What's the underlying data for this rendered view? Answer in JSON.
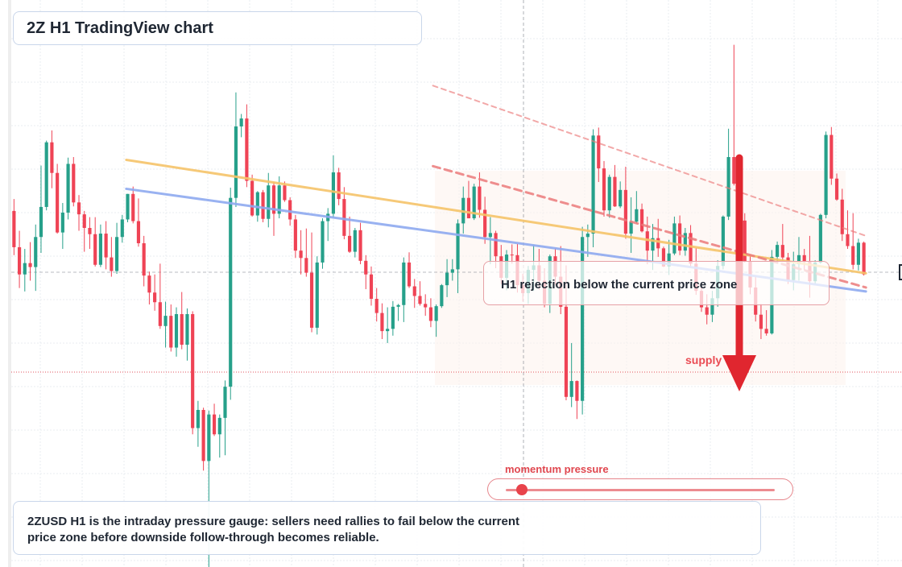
{
  "title": "2Z H1 TradingView chart",
  "annotation": "H1 rejection below the current price zone",
  "supply_label": "supply",
  "momentum": {
    "label": "momentum pressure",
    "level": 0.06
  },
  "summary": {
    "line1": "2ZUSD H1 is the intraday pressure gauge: sellers need rallies to fail below the current",
    "line2": "price zone before downside follow-through becomes reliable."
  },
  "colors": {
    "up": "#26a08a",
    "down": "#ef4355",
    "orange_line": "#f6c46a",
    "blue_line": "#8faaf0",
    "dashed_red": "#ec7b7b",
    "arrow": "#e0262f",
    "grid": "#e8ecf2"
  },
  "chart_data": {
    "type": "candlestick",
    "title": "2Z H1 TradingView chart",
    "ylim": [
      0,
      100
    ],
    "current_price": 57,
    "candles_ohlc": [
      [
        62.8,
        64.9,
        55.0,
        56.4
      ],
      [
        56.4,
        59.3,
        49.2,
        51.6
      ],
      [
        51.6,
        56.1,
        48.6,
        53.6
      ],
      [
        53.6,
        57.3,
        50.5,
        52.9
      ],
      [
        52.9,
        60.4,
        48.7,
        58.2
      ],
      [
        58.2,
        70.8,
        55.4,
        63.5
      ],
      [
        63.5,
        75.2,
        62.9,
        74.9
      ],
      [
        74.9,
        77.0,
        66.8,
        69.5
      ],
      [
        69.5,
        71.1,
        58.8,
        59.0
      ],
      [
        59.0,
        64.2,
        56.1,
        62.5
      ],
      [
        62.5,
        72.2,
        61.3,
        71.1
      ],
      [
        71.1,
        72.3,
        63.6,
        64.3
      ],
      [
        64.3,
        65.6,
        59.3,
        62.2
      ],
      [
        62.2,
        62.8,
        55.6,
        59.8
      ],
      [
        59.8,
        61.7,
        56.1,
        58.7
      ],
      [
        58.7,
        61.7,
        53.0,
        53.3
      ],
      [
        53.3,
        60.4,
        52.9,
        58.8
      ],
      [
        58.8,
        61.0,
        52.5,
        54.6
      ],
      [
        54.6,
        58.2,
        51.2,
        52.2
      ],
      [
        52.2,
        60.7,
        51.7,
        58.2
      ],
      [
        58.2,
        62.1,
        57.2,
        61.3
      ],
      [
        61.3,
        65.8,
        60.8,
        65.8
      ],
      [
        65.8,
        67.1,
        60.6,
        61.0
      ],
      [
        61.0,
        65.0,
        56.5,
        57.1
      ],
      [
        57.1,
        58.4,
        49.5,
        51.4
      ],
      [
        51.4,
        52.1,
        46.3,
        48.4
      ],
      [
        48.4,
        51.6,
        45.2,
        46.7
      ],
      [
        46.7,
        53.5,
        42.0,
        42.5
      ],
      [
        42.5,
        46.8,
        38.7,
        44.3
      ],
      [
        44.3,
        46.3,
        38.0,
        38.7
      ],
      [
        38.7,
        45.8,
        37.1,
        44.6
      ],
      [
        44.6,
        48.5,
        38.4,
        39.2
      ],
      [
        39.2,
        45.6,
        36.4,
        44.6
      ],
      [
        44.6,
        45.1,
        23.4,
        24.5
      ],
      [
        24.5,
        29.3,
        21.2,
        27.7
      ],
      [
        27.7,
        28.1,
        17.0,
        18.7
      ],
      [
        18.7,
        27.6,
        0.0,
        26.9
      ],
      [
        26.9,
        28.8,
        23.1,
        23.4
      ],
      [
        23.4,
        26.9,
        19.3,
        26.3
      ],
      [
        26.3,
        32.9,
        19.7,
        31.8
      ],
      [
        31.8,
        66.9,
        29.5,
        65.1
      ],
      [
        65.1,
        83.7,
        63.5,
        77.7
      ],
      [
        77.7,
        79.9,
        75.8,
        79.1
      ],
      [
        79.1,
        81.6,
        67.0,
        68.1
      ],
      [
        68.1,
        69.2,
        61.8,
        62.0
      ],
      [
        62.0,
        66.3,
        60.9,
        66.1
      ],
      [
        66.1,
        66.5,
        60.8,
        61.4
      ],
      [
        61.4,
        69.5,
        59.9,
        67.3
      ],
      [
        67.3,
        67.9,
        58.4,
        62.3
      ],
      [
        62.3,
        68.9,
        61.5,
        67.3
      ],
      [
        67.3,
        68.0,
        64.4,
        64.7
      ],
      [
        64.7,
        65.2,
        60.2,
        61.3
      ],
      [
        61.3,
        62.1,
        54.5,
        55.8
      ],
      [
        55.8,
        59.4,
        51.6,
        54.5
      ],
      [
        54.5,
        59.7,
        51.2,
        51.9
      ],
      [
        51.9,
        59.0,
        41.4,
        42.2
      ],
      [
        42.2,
        54.8,
        41.0,
        53.7
      ],
      [
        53.7,
        61.5,
        52.6,
        61.0
      ],
      [
        61.0,
        63.3,
        57.5,
        62.3
      ],
      [
        62.3,
        72.6,
        61.6,
        69.6
      ],
      [
        69.6,
        70.4,
        63.8,
        64.9
      ],
      [
        64.9,
        67.0,
        57.8,
        58.4
      ],
      [
        58.4,
        61.8,
        55.4,
        55.6
      ],
      [
        55.6,
        59.8,
        54.6,
        59.4
      ],
      [
        59.4,
        60.7,
        53.4,
        54.0
      ],
      [
        54.0,
        55.0,
        49.0,
        51.6
      ],
      [
        51.6,
        53.0,
        46.1,
        47.3
      ],
      [
        47.3,
        49.2,
        43.3,
        44.8
      ],
      [
        44.8,
        46.5,
        40.2,
        41.6
      ],
      [
        41.6,
        45.8,
        39.5,
        42.0
      ],
      [
        42.0,
        46.9,
        40.8,
        45.9
      ],
      [
        45.9,
        46.4,
        43.4,
        46.2
      ],
      [
        46.2,
        54.6,
        43.2,
        53.7
      ],
      [
        53.7,
        55.5,
        49.2,
        49.5
      ],
      [
        49.5,
        50.8,
        45.7,
        47.8
      ],
      [
        47.8,
        50.4,
        46.1,
        46.4
      ],
      [
        46.4,
        48.1,
        44.3,
        45.8
      ],
      [
        45.8,
        47.4,
        42.3,
        43.4
      ],
      [
        43.4,
        46.3,
        40.6,
        46.0
      ],
      [
        46.0,
        49.9,
        45.7,
        49.7
      ],
      [
        49.7,
        54.3,
        47.6,
        51.9
      ],
      [
        51.9,
        54.3,
        50.5,
        52.5
      ],
      [
        52.5,
        61.3,
        48.3,
        60.6
      ],
      [
        60.6,
        67.1,
        58.8,
        65.1
      ],
      [
        65.1,
        68.1,
        61.5,
        61.5
      ],
      [
        61.5,
        67.6,
        61.2,
        67.1
      ],
      [
        67.1,
        69.6,
        61.6,
        63.0
      ],
      [
        63.0,
        65.3,
        57.0,
        58.2
      ],
      [
        58.2,
        61.7,
        53.4,
        58.9
      ],
      [
        58.9,
        59.3,
        52.7,
        54.8
      ],
      [
        54.8,
        56.8,
        49.9,
        51.0
      ],
      [
        51.0,
        55.9,
        48.8,
        55.1
      ],
      [
        55.1,
        56.9,
        53.5,
        55.0
      ],
      [
        55.0,
        57.0,
        48.4,
        49.7
      ],
      [
        49.7,
        51.7,
        46.8,
        48.3
      ],
      [
        48.3,
        53.1,
        46.4,
        52.4
      ],
      [
        52.4,
        56.8,
        48.7,
        53.2
      ],
      [
        53.2,
        56.1,
        48.9,
        50.5
      ],
      [
        50.5,
        52.7,
        45.8,
        46.4
      ],
      [
        46.4,
        55.1,
        44.8,
        54.8
      ],
      [
        54.8,
        56.2,
        49.8,
        51.2
      ],
      [
        51.2,
        56.6,
        44.6,
        45.9
      ],
      [
        45.9,
        53.2,
        29.4,
        30.0
      ],
      [
        30.0,
        39.5,
        28.2,
        32.8
      ],
      [
        32.8,
        32.9,
        26.1,
        29.3
      ],
      [
        29.3,
        60.0,
        26.9,
        58.2
      ],
      [
        58.2,
        60.4,
        54.7,
        58.8
      ],
      [
        58.8,
        77.2,
        56.4,
        76.1
      ],
      [
        76.1,
        77.5,
        67.9,
        70.3
      ],
      [
        70.3,
        71.6,
        61.8,
        62.9
      ],
      [
        62.9,
        69.2,
        61.6,
        68.8
      ],
      [
        68.8,
        70.9,
        63.5,
        63.6
      ],
      [
        63.6,
        68.0,
        63.3,
        66.5
      ],
      [
        66.5,
        70.6,
        57.9,
        58.8
      ],
      [
        58.8,
        65.2,
        55.4,
        60.9
      ],
      [
        60.9,
        66.3,
        60.6,
        63.1
      ],
      [
        63.1,
        64.1,
        59.0,
        59.2
      ],
      [
        59.2,
        61.8,
        53.4,
        55.8
      ],
      [
        55.8,
        60.5,
        52.4,
        58.0
      ],
      [
        58.0,
        61.4,
        54.7,
        56.2
      ],
      [
        56.2,
        56.5,
        52.9,
        53.0
      ],
      [
        53.0,
        57.7,
        51.5,
        55.3
      ],
      [
        55.3,
        61.8,
        55.0,
        60.6
      ],
      [
        60.6,
        62.0,
        55.0,
        55.8
      ],
      [
        55.8,
        59.8,
        54.9,
        58.9
      ],
      [
        58.9,
        60.3,
        52.8,
        53.5
      ],
      [
        53.5,
        56.2,
        48.0,
        48.7
      ],
      [
        48.7,
        50.1,
        45.0,
        45.8
      ],
      [
        45.8,
        48.1,
        42.8,
        44.5
      ],
      [
        44.5,
        48.7,
        43.2,
        47.4
      ],
      [
        47.4,
        54.1,
        45.9,
        53.1
      ],
      [
        53.1,
        62.0,
        52.5,
        61.8
      ],
      [
        61.8,
        77.3,
        61.2,
        72.3
      ],
      [
        72.3,
        92.1,
        67.3,
        67.6
      ],
      [
        67.6,
        69.3,
        60.1,
        61.1
      ],
      [
        61.1,
        62.4,
        53.7,
        53.9
      ],
      [
        53.9,
        54.9,
        48.1,
        49.3
      ],
      [
        49.3,
        51.4,
        43.3,
        44.5
      ],
      [
        44.5,
        46.4,
        40.2,
        42.0
      ],
      [
        42.0,
        45.3,
        40.8,
        41.2
      ],
      [
        41.2,
        55.9,
        41.0,
        54.7
      ],
      [
        54.7,
        57.4,
        53.5,
        56.8
      ],
      [
        56.8,
        60.5,
        54.0,
        54.6
      ],
      [
        54.6,
        55.4,
        49.9,
        50.6
      ],
      [
        50.6,
        55.6,
        48.8,
        53.4
      ],
      [
        53.4,
        58.2,
        50.5,
        55.0
      ],
      [
        55.0,
        56.1,
        52.4,
        53.8
      ],
      [
        53.8,
        58.4,
        47.5,
        50.4
      ],
      [
        50.4,
        54.1,
        49.9,
        53.7
      ],
      [
        53.7,
        62.3,
        53.5,
        62.1
      ],
      [
        62.1,
        76.8,
        61.5,
        76.2
      ],
      [
        76.2,
        77.6,
        67.4,
        68.5
      ],
      [
        68.5,
        69.4,
        64.6,
        64.8
      ],
      [
        64.8,
        66.7,
        57.5,
        58.7
      ],
      [
        58.7,
        62.9,
        56.1,
        56.6
      ],
      [
        56.6,
        62.4,
        52.5,
        53.3
      ],
      [
        53.3,
        57.9,
        52.3,
        57.2
      ],
      [
        57.2,
        57.4,
        51.4,
        51.6
      ]
    ],
    "lines": [
      {
        "style": "solid",
        "color": "orange",
        "start": [
          0.14,
          71.8
        ],
        "end": [
          0.96,
          51.8
        ]
      },
      {
        "style": "solid",
        "color": "blue",
        "start": [
          0.14,
          66.7
        ],
        "end": [
          0.96,
          48.6
        ]
      },
      {
        "style": "dashed",
        "color": "red",
        "start": [
          0.48,
          70.7
        ],
        "end": [
          0.96,
          49.3
        ]
      },
      {
        "style": "dashed",
        "color": "light-red",
        "start": [
          0.48,
          84.9
        ],
        "end": [
          0.96,
          58.4
        ]
      }
    ]
  }
}
